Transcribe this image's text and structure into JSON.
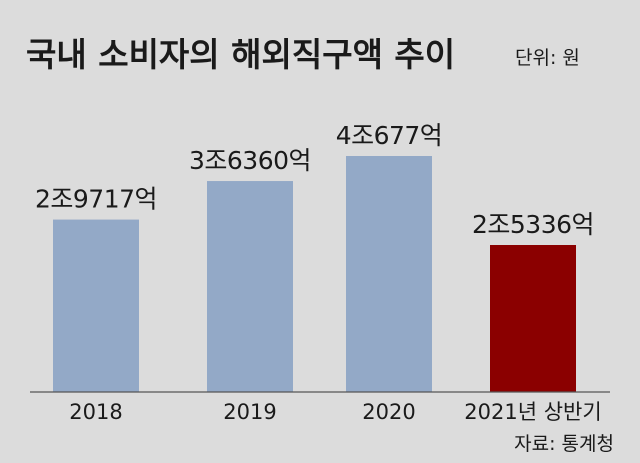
{
  "header": {
    "title": "국내 소비자의 해외직구액 추이",
    "unit": "단위: 원"
  },
  "footer": {
    "source": "자료: 통계청"
  },
  "colors": {
    "background": "#dcdcdc",
    "bar": "#93a9c7",
    "highlight_bar": "#8b0000",
    "baseline": "#555555",
    "text": "#1a1a1a"
  },
  "chart_data": {
    "type": "bar",
    "title": "국내 소비자의 해외직구액 추이",
    "unit": "단위: 원",
    "categories": [
      "2018",
      "2019",
      "2020",
      "2021년 상반기"
    ],
    "values": [
      29717,
      36360,
      40677,
      25336
    ],
    "value_unit": "억 원",
    "data_labels": [
      "2조9717억",
      "3조6360억",
      "4조677억",
      "2조5336억"
    ],
    "highlight_index": 3,
    "ylim": [
      0,
      40677
    ],
    "grid": false,
    "legend": "none"
  }
}
